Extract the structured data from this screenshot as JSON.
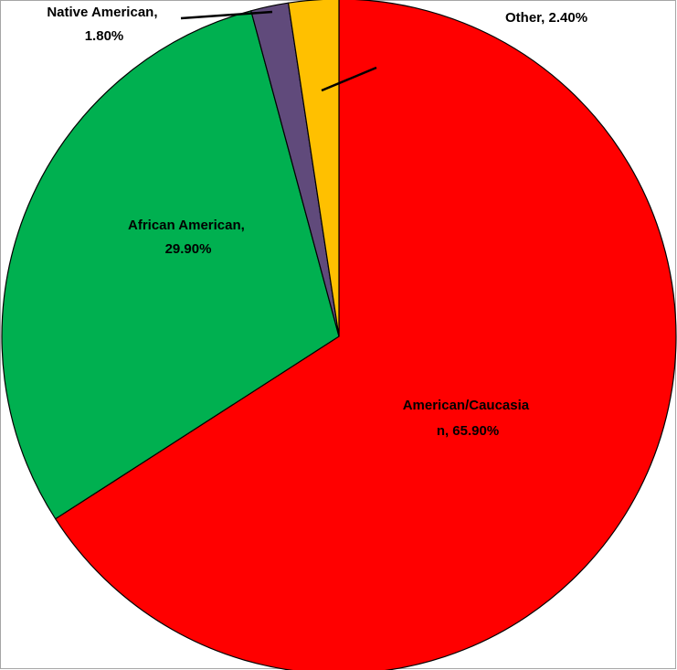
{
  "chart_data": {
    "type": "pie",
    "title": "",
    "slices": [
      {
        "category": "American/Caucasian",
        "value": 65.9,
        "color": "#ff0000",
        "label_lines": [
          "American/Caucasia",
          "n, 65.90%"
        ]
      },
      {
        "category": "African American",
        "value": 29.9,
        "color": "#00b050",
        "label_lines": [
          "African American,",
          "29.90%"
        ]
      },
      {
        "category": "Native American",
        "value": 1.8,
        "color": "#604a7b",
        "label_lines": [
          "Native American,",
          "1.80%"
        ]
      },
      {
        "category": "Other",
        "value": 2.4,
        "color": "#ffc000",
        "label_lines": [
          "Other, 2.40%"
        ]
      }
    ],
    "start_angle_deg": 0,
    "direction": "clockwise",
    "legend": "none",
    "slice_border_color": "#000000"
  }
}
